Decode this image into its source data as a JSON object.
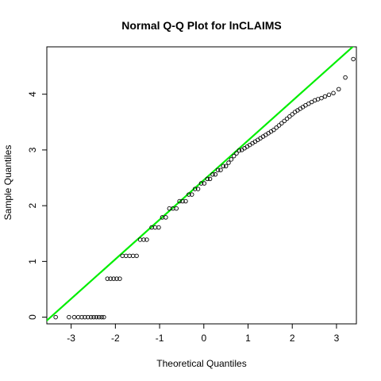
{
  "chart_data": {
    "type": "scatter",
    "title": "Normal Q-Q Plot for lnCLAIMS",
    "xlabel": "Theoretical Quantiles",
    "ylabel": "Sample Quantiles",
    "xlim": [
      -3.55,
      3.45
    ],
    "ylim": [
      -0.12,
      4.85
    ],
    "x_ticks": [
      -3,
      -2,
      -1,
      0,
      1,
      2,
      3
    ],
    "y_ticks": [
      0,
      1,
      2,
      3,
      4
    ],
    "grid": false,
    "legend": "none",
    "point_color": "#000000",
    "reference_line": {
      "color": "#00ee00",
      "intercept": 2.46,
      "slope": 0.71
    },
    "series": [
      {
        "points": [
          [
            -3.35,
            0.0
          ],
          [
            -3.05,
            0.0
          ],
          [
            -2.93,
            0.0
          ],
          [
            -2.84,
            0.0
          ],
          [
            -2.76,
            0.0
          ],
          [
            -2.69,
            0.0
          ],
          [
            -2.62,
            0.0
          ],
          [
            -2.55,
            0.0
          ],
          [
            -2.49,
            0.0
          ],
          [
            -2.43,
            0.0
          ],
          [
            -2.37,
            0.0
          ],
          [
            -2.31,
            0.0
          ],
          [
            -2.26,
            0.0
          ],
          [
            -2.18,
            0.69
          ],
          [
            -2.11,
            0.69
          ],
          [
            -2.04,
            0.69
          ],
          [
            -1.97,
            0.69
          ],
          [
            -1.9,
            0.69
          ],
          [
            -1.84,
            1.1
          ],
          [
            -1.76,
            1.1
          ],
          [
            -1.68,
            1.1
          ],
          [
            -1.6,
            1.1
          ],
          [
            -1.52,
            1.1
          ],
          [
            -1.44,
            1.39
          ],
          [
            -1.36,
            1.39
          ],
          [
            -1.29,
            1.39
          ],
          [
            -1.18,
            1.61
          ],
          [
            -1.1,
            1.61
          ],
          [
            -1.02,
            1.61
          ],
          [
            -0.94,
            1.79
          ],
          [
            -0.86,
            1.79
          ],
          [
            -0.78,
            1.95
          ],
          [
            -0.7,
            1.95
          ],
          [
            -0.62,
            1.95
          ],
          [
            -0.55,
            2.08
          ],
          [
            -0.48,
            2.08
          ],
          [
            -0.41,
            2.08
          ],
          [
            -0.34,
            2.2
          ],
          [
            -0.27,
            2.2
          ],
          [
            -0.2,
            2.3
          ],
          [
            -0.13,
            2.3
          ],
          [
            -0.06,
            2.4
          ],
          [
            0.01,
            2.4
          ],
          [
            0.08,
            2.48
          ],
          [
            0.14,
            2.48
          ],
          [
            0.2,
            2.56
          ],
          [
            0.26,
            2.56
          ],
          [
            0.32,
            2.64
          ],
          [
            0.38,
            2.64
          ],
          [
            0.44,
            2.71
          ],
          [
            0.5,
            2.71
          ],
          [
            0.56,
            2.77
          ],
          [
            0.62,
            2.83
          ],
          [
            0.68,
            2.89
          ],
          [
            0.74,
            2.94
          ],
          [
            0.8,
            2.99
          ],
          [
            0.86,
            3.0
          ],
          [
            0.92,
            3.03
          ],
          [
            0.98,
            3.06
          ],
          [
            1.04,
            3.09
          ],
          [
            1.1,
            3.12
          ],
          [
            1.16,
            3.15
          ],
          [
            1.22,
            3.18
          ],
          [
            1.28,
            3.21
          ],
          [
            1.34,
            3.24
          ],
          [
            1.4,
            3.27
          ],
          [
            1.46,
            3.3
          ],
          [
            1.52,
            3.33
          ],
          [
            1.58,
            3.36
          ],
          [
            1.64,
            3.4
          ],
          [
            1.7,
            3.44
          ],
          [
            1.76,
            3.48
          ],
          [
            1.82,
            3.52
          ],
          [
            1.88,
            3.56
          ],
          [
            1.94,
            3.6
          ],
          [
            2.0,
            3.64
          ],
          [
            2.06,
            3.68
          ],
          [
            2.12,
            3.71
          ],
          [
            2.18,
            3.74
          ],
          [
            2.24,
            3.77
          ],
          [
            2.3,
            3.8
          ],
          [
            2.37,
            3.83
          ],
          [
            2.44,
            3.86
          ],
          [
            2.51,
            3.89
          ],
          [
            2.58,
            3.91
          ],
          [
            2.66,
            3.93
          ],
          [
            2.74,
            3.96
          ],
          [
            2.83,
            3.99
          ],
          [
            2.93,
            4.02
          ],
          [
            3.05,
            4.09
          ],
          [
            3.2,
            4.3
          ],
          [
            3.38,
            4.63
          ]
        ]
      }
    ]
  }
}
